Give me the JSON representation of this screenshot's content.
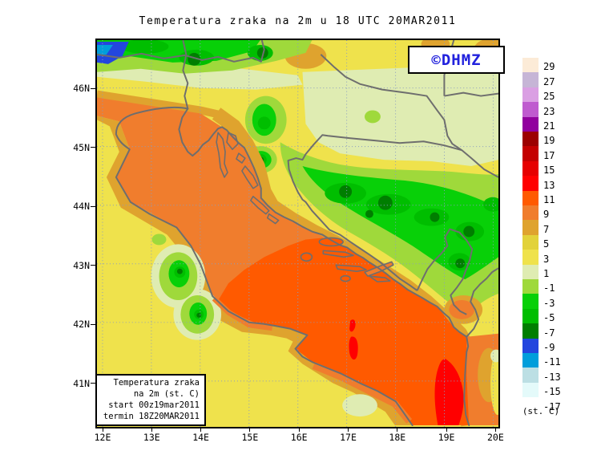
{
  "title": "Temperatura zraka na 2m u 18 UTC 20MAR2011",
  "logo": {
    "text": "©DHMZ",
    "color": "#2121DD"
  },
  "info_box": {
    "line1": "Temperatura zraka",
    "line2": "na 2m (st. C)",
    "line3": "start 00z19mar2011",
    "line4": "termin 18Z20MAR2011"
  },
  "axes": {
    "lon_labels": [
      "12E",
      "13E",
      "14E",
      "15E",
      "16E",
      "17E",
      "18E",
      "19E",
      "20E"
    ],
    "lat_labels": [
      "46N",
      "45N",
      "44N",
      "43N",
      "42N",
      "41N"
    ]
  },
  "colorbar": {
    "unit": "(st. C)",
    "tick_labels": [
      "29",
      "27",
      "25",
      "23",
      "21",
      "19",
      "17",
      "15",
      "13",
      "11",
      "9",
      "7",
      "5",
      "3",
      "1",
      "-1",
      "-3",
      "-5",
      "-7",
      "-9",
      "-11",
      "-13",
      "-15",
      "-17"
    ],
    "colors": [
      "#FCEBD7",
      "#C6B5D6",
      "#DA9FE3",
      "#BF5BCF",
      "#91009E",
      "#9C0000",
      "#C40000",
      "#E60000",
      "#FF0000",
      "#FF5A00",
      "#F07D2D",
      "#DFA32E",
      "#E2D23A",
      "#EFE24C",
      "#DFECB2",
      "#9FD93B",
      "#08D008",
      "#00BE00",
      "#007E00",
      "#2346DE",
      "#009EDB",
      "#BCDFE4",
      "#E4FAFA",
      "#FFFFFF"
    ]
  },
  "map": {
    "palette": {
      "p13": "#FF0000",
      "p11": "#FF5A00",
      "p9": "#F07D2D",
      "p7": "#DFA32E",
      "p5": "#E2D23A",
      "p3": "#EFE24C",
      "p1": "#DFECB2",
      "pm1": "#9FD93B",
      "pm3": "#08D008",
      "pm5": "#00BE00",
      "pm7": "#007E00",
      "pm9": "#2346DE",
      "pm11": "#009EDB"
    },
    "line_color": "#6E6E6E",
    "grid_color": "#8A9CC0",
    "frame_color": "#000000"
  }
}
